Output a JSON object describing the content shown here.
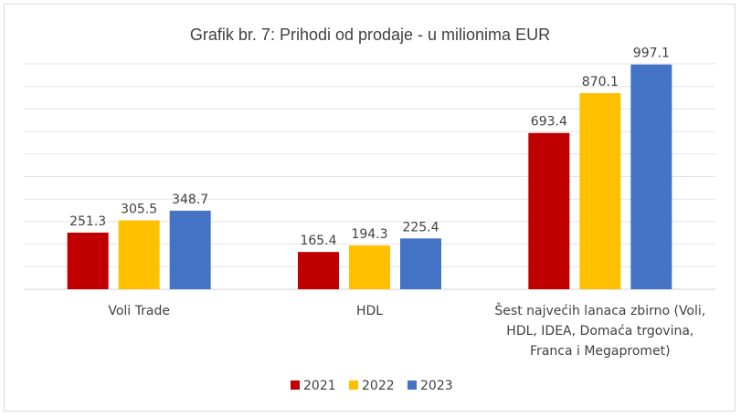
{
  "chart_data": {
    "type": "bar",
    "title": "Grafik br. 7: Prihodi od prodaje - u milionima EUR",
    "categories": [
      [
        "Voli Trade"
      ],
      [
        "HDL"
      ],
      [
        "Šest najvećih lanaca zbirno (Voli,",
        "HDL, IDEA, Domaća trgovina,",
        "Franca i Megapromet)"
      ]
    ],
    "series": [
      {
        "name": "2021",
        "color": "#c00000",
        "values": [
          251.3,
          165.4,
          693.4
        ]
      },
      {
        "name": "2022",
        "color": "#ffc000",
        "values": [
          305.5,
          194.3,
          870.1
        ]
      },
      {
        "name": "2023",
        "color": "#4472c4",
        "values": [
          348.7,
          225.4,
          997.1
        ]
      }
    ],
    "ylim": [
      0,
      1000
    ],
    "grid": true,
    "gridlines": 10,
    "legend": "bottom",
    "data_labels": true
  }
}
